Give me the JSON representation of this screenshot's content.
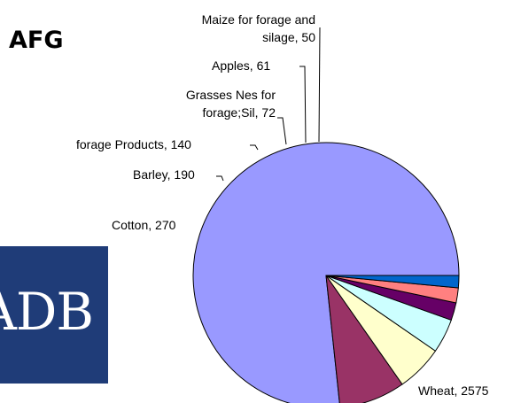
{
  "page": {
    "country_code": "AFG",
    "logo_text": "ADB"
  },
  "chart_data": {
    "type": "pie",
    "title": "",
    "series": [
      {
        "values": [
          2575,
          270,
          190,
          140,
          72,
          61,
          50
        ],
        "categories": [
          "Wheat",
          "Cotton",
          "Barley",
          "forage Products",
          "Grasses Nes for forage;Sil",
          "Apples",
          "Maize for forage and silage"
        ]
      }
    ],
    "labels": [
      [
        "Wheat, 2575"
      ],
      [
        "Cotton, 270"
      ],
      [
        "Barley, 190"
      ],
      [
        "forage Products, 140"
      ],
      [
        "Grasses Nes for",
        "forage;Sil, 72"
      ],
      [
        "Apples, 61"
      ],
      [
        "Maize for forage and",
        "silage, 50"
      ]
    ],
    "colors": [
      "#9999ff",
      "#993366",
      "#ffffcc",
      "#ccffff",
      "#660066",
      "#ff8080",
      "#0066cc"
    ],
    "start_angle_deg": 0,
    "direction": "counterclockwise",
    "legend": "none",
    "data_labels": "outside with leader lines"
  }
}
